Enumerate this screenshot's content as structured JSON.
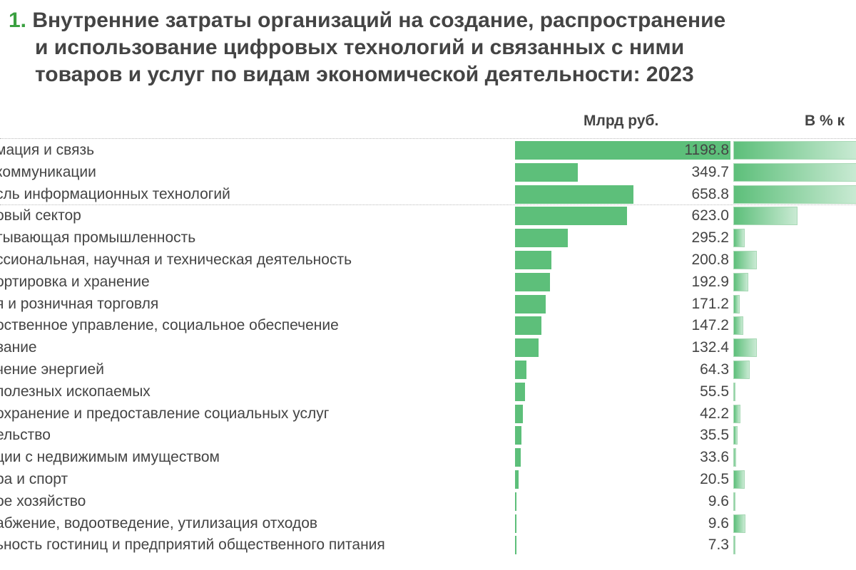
{
  "title": {
    "number": "1.",
    "text_lines": [
      "Внутренние затраты организаций на создание, распространение",
      "и использование цифровых технологий и связанных с ними",
      "товаров и услуг по видам экономической деятельности: 2023"
    ]
  },
  "chart_data": {
    "type": "bar",
    "columns": [
      "Млрд  руб.",
      "В % к"
    ],
    "categories": [
      "мация и связь",
      "коммуникации",
      "сль информационных технологий",
      "овый сектор",
      "тывающая промышленность",
      "ссиональная, научная и техническая деятельность",
      "ортировка и хранение",
      "я и розничная торговля",
      "оственное управление, социальное обеспечение",
      "вание",
      "чение энергией",
      " полезных ископаемых",
      "охранение и предоставление социальных услуг",
      "ельство",
      "ции с недвижимым имуществом",
      "ра и спорт",
      "ое хозяйство",
      "абжение, водоотведение, утилизация отходов",
      "ьность гостиниц и предприятий общественного питания"
    ],
    "values": [
      "1198.8",
      "349.7",
      "658.8",
      "623.0",
      "295.2",
      "200.8",
      "192.9",
      "171.2",
      "147.2",
      "132.4",
      "64.3",
      "55.5",
      "42.2",
      "35.5",
      "33.6",
      "20.5",
      "9.6",
      "9.6",
      "7.3"
    ],
    "percent_bar_relative": [
      1,
      1,
      1,
      0.52,
      0.09,
      0.19,
      0.12,
      0.05,
      0.08,
      0.19,
      0.13,
      0.02,
      0.06,
      0.035,
      0.025,
      0.09,
      0.012,
      0.1,
      0.018
    ],
    "xlim": [
      0,
      1198.8
    ]
  },
  "colors": {
    "bar": "#5dbf7a",
    "title_number": "#3aa040",
    "text": "#444444"
  }
}
